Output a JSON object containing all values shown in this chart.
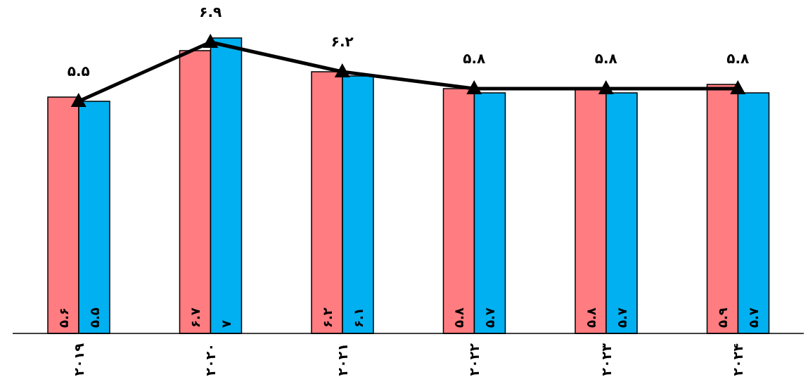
{
  "chart_data": {
    "type": "bar",
    "categories": [
      "۲۰۱۹",
      "۲۰۲۰",
      "۲۰۲۱",
      "۲۰۲۲",
      "۲۰۲۳",
      "۲۰۲۴"
    ],
    "series": [
      {
        "color": "#ff7c80",
        "values": [
          5.6,
          6.7,
          6.2,
          5.8,
          5.8,
          5.9
        ],
        "value_labels": [
          "۵.۶",
          "۶.۷",
          "۶.۲",
          "۵.۸",
          "۵.۸",
          "۵.۹"
        ]
      },
      {
        "color": "#00b0f0",
        "values": [
          5.5,
          7,
          6.1,
          5.7,
          5.7,
          5.7
        ],
        "value_labels": [
          "۵.۵",
          "۷",
          "۶.۱",
          "۵.۷",
          "۵.۷",
          "۵.۷"
        ]
      },
      {
        "type": "line",
        "color": "#000000",
        "values": [
          5.5,
          6.9,
          6.2,
          5.8,
          5.8,
          5.8
        ],
        "value_labels": [
          "۵.۵",
          "۶.۹",
          "۶.۲",
          "۵.۸",
          "۵.۸",
          "۵.۸"
        ]
      }
    ],
    "marker": "triangle",
    "grid": false,
    "legend": false
  }
}
